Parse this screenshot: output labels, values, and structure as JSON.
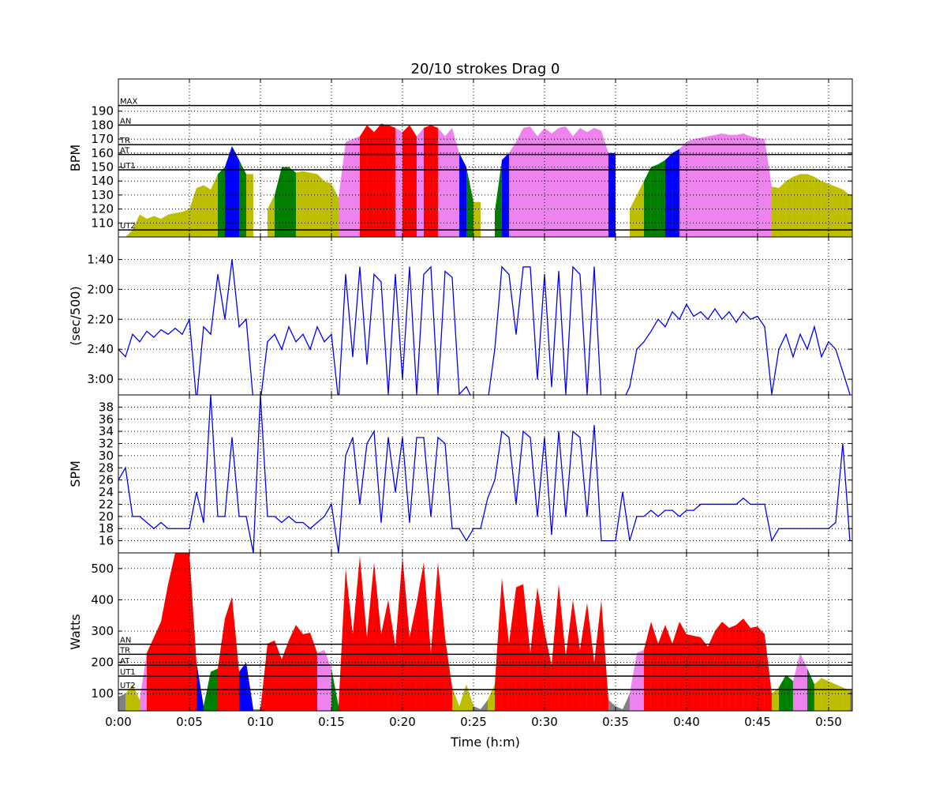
{
  "chart_data": {
    "type": "area",
    "title": "20/10 strokes Drag 0",
    "xlabel": "Time (h:m)",
    "xlim": [
      0,
      51.67
    ],
    "x_unit": "minutes",
    "x_ticks": [
      0,
      5,
      10,
      15,
      20,
      25,
      30,
      35,
      40,
      45,
      50
    ],
    "x_tick_labels": [
      "0:00",
      "0:05",
      "0:10",
      "0:15",
      "0:20",
      "0:25",
      "0:30",
      "0:35",
      "0:40",
      "0:45",
      "0:50"
    ],
    "grid": true,
    "x": [
      0,
      0.5,
      1,
      1.5,
      2,
      2.5,
      3,
      3.5,
      4,
      4.5,
      5,
      5.5,
      6,
      6.5,
      7,
      7.5,
      8,
      8.5,
      9,
      9.5,
      10,
      10.5,
      11,
      11.5,
      12,
      12.5,
      13,
      13.5,
      14,
      14.5,
      15,
      15.5,
      16,
      16.5,
      17,
      17.5,
      18,
      18.5,
      19,
      19.5,
      20,
      20.5,
      21,
      21.5,
      22,
      22.5,
      23,
      23.5,
      24,
      24.5,
      25,
      25.5,
      26,
      26.5,
      27,
      27.5,
      28,
      28.5,
      29,
      29.5,
      30,
      30.5,
      31,
      31.5,
      32,
      32.5,
      33,
      33.5,
      34,
      34.5,
      35,
      35.5,
      36,
      36.5,
      37,
      37.5,
      38,
      38.5,
      39,
      39.5,
      40,
      40.5,
      41,
      41.5,
      42,
      42.5,
      43,
      43.5,
      44,
      44.5,
      45,
      45.5,
      46,
      46.5,
      47,
      47.5,
      48,
      48.5,
      49,
      49.5,
      50,
      50.5,
      51,
      51.5
    ],
    "panels": [
      {
        "ylabel": "BPM",
        "kind": "zone-area",
        "ylim": [
          100,
          213
        ],
        "y_ticks": [
          110,
          120,
          130,
          140,
          150,
          160,
          170,
          180,
          190
        ],
        "y_tick_labels": [
          "110",
          "120",
          "130",
          "140",
          "150",
          "160",
          "170",
          "180",
          "190"
        ],
        "zones": [
          {
            "label": "UT2",
            "value": 105
          },
          {
            "label": "UT1",
            "value": 148
          },
          {
            "label": "AT",
            "value": 159
          },
          {
            "label": "TR",
            "value": 166
          },
          {
            "label": "AN",
            "value": 180
          },
          {
            "label": "MAX",
            "value": 194
          }
        ],
        "zone_colors": [
          "#bebe00",
          "#bebe00",
          "#007f00",
          "#0000ff",
          "#ee82ee",
          "#ff0000",
          "#ff0000"
        ],
        "values": [
          100,
          100,
          105,
          116,
          113,
          115,
          113,
          116,
          117,
          118,
          120,
          135,
          137,
          134,
          145,
          150,
          165,
          155,
          145,
          null,
          null,
          120,
          130,
          150,
          150,
          146,
          147,
          146,
          145,
          140,
          138,
          128,
          168,
          170,
          172,
          180,
          175,
          181,
          180,
          178,
          175,
          180,
          172,
          178,
          180,
          178,
          172,
          178,
          160,
          150,
          125,
          null,
          null,
          118,
          155,
          160,
          168,
          178,
          179,
          172,
          178,
          174,
          178,
          179,
          172,
          178,
          175,
          178,
          176,
          160,
          null,
          null,
          120,
          130,
          140,
          150,
          152,
          155,
          160,
          163,
          168,
          170,
          171,
          172,
          173,
          174,
          173,
          173,
          174,
          172,
          171,
          170,
          136,
          135,
          140,
          143,
          145,
          145,
          143,
          140,
          138,
          136,
          134,
          130
        ]
      },
      {
        "ylabel": "(sec/500)",
        "kind": "line",
        "ylim": [
          190.5,
          85
        ],
        "inverted": true,
        "color": "#0000ff",
        "y_ticks": [
          100,
          120,
          140,
          160,
          180
        ],
        "y_tick_labels": [
          "1:40",
          "2:00",
          "2:20",
          "2:40",
          "3:00"
        ],
        "values": [
          160,
          165,
          150,
          155,
          148,
          152,
          147,
          150,
          146,
          150,
          140,
          195,
          145,
          150,
          110,
          140,
          100,
          145,
          140,
          195,
          195,
          155,
          150,
          160,
          145,
          155,
          150,
          160,
          145,
          155,
          150,
          195,
          110,
          165,
          105,
          170,
          110,
          115,
          190,
          110,
          180,
          105,
          190,
          110,
          105,
          190,
          108,
          112,
          190,
          185,
          195,
          195,
          195,
          160,
          105,
          110,
          150,
          105,
          105,
          180,
          110,
          185,
          108,
          190,
          105,
          110,
          190,
          105,
          195,
          195,
          195,
          195,
          185,
          160,
          155,
          148,
          140,
          145,
          135,
          140,
          130,
          138,
          135,
          140,
          133,
          140,
          135,
          142,
          135,
          140,
          138,
          145,
          190,
          160,
          150,
          165,
          150,
          160,
          145,
          165,
          155,
          160,
          175,
          190
        ]
      },
      {
        "ylabel": "SPM",
        "kind": "line",
        "ylim": [
          14,
          40
        ],
        "color": "#0000ff",
        "y_ticks": [
          16,
          18,
          20,
          22,
          24,
          26,
          28,
          30,
          32,
          34,
          36,
          38
        ],
        "y_tick_labels": [
          "16",
          "18",
          "20",
          "22",
          "24",
          "26",
          "28",
          "30",
          "32",
          "34",
          "36",
          "38"
        ],
        "values": [
          26,
          28,
          20,
          20,
          19,
          18,
          19,
          18,
          18,
          18,
          18,
          24,
          19,
          40,
          20,
          20,
          33,
          20,
          20,
          14,
          40,
          20,
          20,
          19,
          20,
          19,
          19,
          18,
          19,
          20,
          22,
          14,
          30,
          33,
          22,
          32,
          34,
          19,
          33,
          24,
          33,
          19,
          33,
          33,
          20,
          33,
          32,
          18,
          18,
          16,
          18,
          18,
          23,
          26,
          34,
          33,
          22,
          34,
          33,
          20,
          33,
          17,
          34,
          20,
          34,
          33,
          20,
          35,
          16,
          16,
          16,
          24,
          16,
          20,
          20,
          21,
          20,
          21,
          21,
          20,
          21,
          21,
          22,
          22,
          22,
          22,
          22,
          22,
          23,
          22,
          22,
          22,
          16,
          18,
          18,
          18,
          18,
          18,
          18,
          18,
          18,
          19,
          32,
          16
        ]
      },
      {
        "ylabel": "Watts",
        "kind": "zone-area",
        "ylim": [
          45,
          550
        ],
        "y_ticks": [
          100,
          200,
          300,
          400,
          500
        ],
        "y_tick_labels": [
          "100",
          "200",
          "300",
          "400",
          "500"
        ],
        "zones": [
          {
            "label": "UT2",
            "value": 113
          },
          {
            "label": "UT1",
            "value": 156
          },
          {
            "label": "AT",
            "value": 191
          },
          {
            "label": "TR",
            "value": 226
          },
          {
            "label": "AN",
            "value": 258
          }
        ],
        "zone_colors": [
          "#808080",
          "#bebe00",
          "#007f00",
          "#0000ff",
          "#ee82ee",
          "#ff0000"
        ],
        "values": [
          90,
          100,
          130,
          80,
          230,
          280,
          330,
          450,
          550,
          550,
          550,
          200,
          60,
          170,
          180,
          340,
          410,
          170,
          200,
          50,
          50,
          260,
          270,
          210,
          270,
          320,
          290,
          295,
          230,
          240,
          180,
          60,
          500,
          290,
          540,
          280,
          520,
          290,
          400,
          250,
          540,
          280,
          390,
          520,
          230,
          520,
          280,
          120,
          60,
          130,
          60,
          50,
          80,
          130,
          470,
          260,
          440,
          450,
          230,
          440,
          300,
          190,
          450,
          220,
          400,
          240,
          390,
          200,
          400,
          80,
          60,
          50,
          100,
          230,
          240,
          330,
          260,
          320,
          260,
          330,
          290,
          285,
          280,
          250,
          300,
          330,
          310,
          320,
          340,
          310,
          315,
          290,
          100,
          120,
          160,
          140,
          230,
          180,
          130,
          150,
          140,
          130,
          120,
          110
        ]
      }
    ]
  }
}
